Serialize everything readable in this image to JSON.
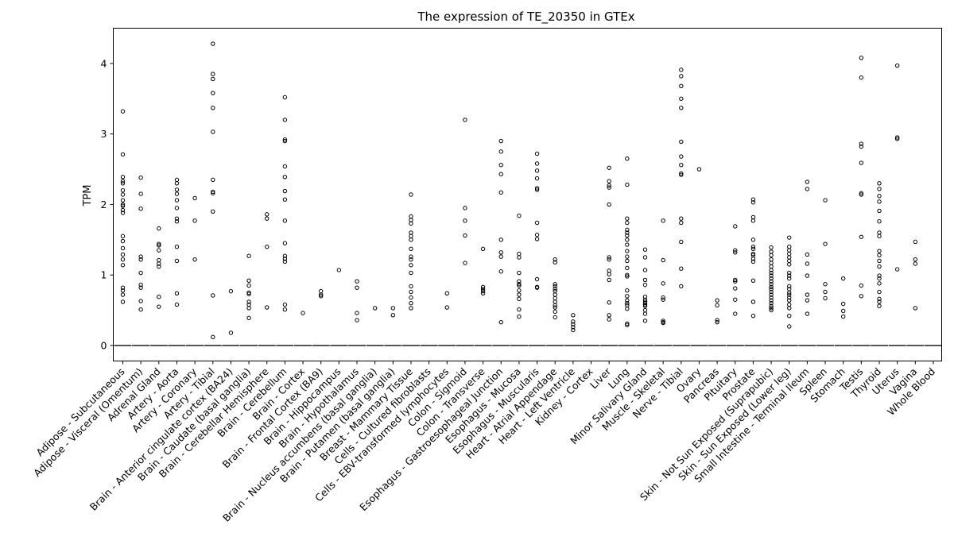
{
  "chart_data": {
    "type": "scatter",
    "title": "The expression of TE_20350 in GTEx",
    "ylabel": "TPM",
    "xlabel": "",
    "ylim": [
      -0.22,
      4.5
    ],
    "yticks": [
      0,
      1,
      2,
      3,
      4
    ],
    "grid": false,
    "legend": "none",
    "marker_color": "#000000",
    "median_color": "#555555",
    "categories": [
      "Adipose - Subcutaneous",
      "Adipose - Visceral (Omentum)",
      "Adrenal Gland",
      "Artery - Aorta",
      "Artery - Coronary",
      "Artery - Tibial",
      "Brain - Anterior cingulate cortex (BA24)",
      "Brain - Caudate (basal ganglia)",
      "Brain - Cerebellar Hemisphere",
      "Brain - Cerebellum",
      "Brain - Cortex",
      "Brain - Frontal Cortex (BA9)",
      "Brain - Hippocampus",
      "Brain - Hypothalamus",
      "Brain - Nucleus accumbens (basal ganglia)",
      "Brain - Putamen (basal ganglia)",
      "Breast - Mammary Tissue",
      "Cells - Cultured fibroblasts",
      "Cells - EBV-transformed lymphocytes",
      "Colon - Sigmoid",
      "Colon - Transverse",
      "Esophagus - Gastroesophageal Junction",
      "Esophagus - Mucosa",
      "Esophagus - Muscularis",
      "Heart - Atrial Appendage",
      "Heart - Left Ventricle",
      "Kidney - Cortex",
      "Liver",
      "Lung",
      "Minor Salivary Gland",
      "Muscle - Skeletal",
      "Nerve - Tibial",
      "Ovary",
      "Pancreas",
      "Pituitary",
      "Prostate",
      "Skin - Not Sun Exposed (Suprapubic)",
      "Skin - Sun Exposed (Lower leg)",
      "Small Intestine - Terminal Ileum",
      "Spleen",
      "Stomach",
      "Testis",
      "Thyroid",
      "Uterus",
      "Vagina",
      "Whole Blood"
    ],
    "medians": [
      0,
      0,
      0,
      0,
      0,
      0,
      0,
      0,
      0,
      0,
      0,
      0,
      0,
      0,
      0,
      0,
      0,
      0,
      0,
      0,
      0,
      0,
      0,
      0,
      0,
      0,
      0,
      0,
      0,
      0,
      0,
      0,
      0,
      0,
      0,
      0,
      0,
      0,
      0,
      0,
      0,
      0,
      0,
      0,
      0,
      0
    ],
    "outliers": [
      [
        3.32,
        2.71,
        2.39,
        2.33,
        2.3,
        2.2,
        2.14,
        2.06,
        2.0,
        1.98,
        1.92,
        1.88,
        1.55,
        1.48,
        1.38,
        1.29,
        1.22,
        1.14,
        0.82,
        0.78,
        0.72,
        0.62
      ],
      [
        2.38,
        2.15,
        1.94,
        1.26,
        1.22,
        1.03,
        0.86,
        0.82,
        0.63,
        0.51
      ],
      [
        1.66,
        1.44,
        1.42,
        1.35,
        1.21,
        1.16,
        1.12,
        0.69,
        0.55
      ],
      [
        2.35,
        2.3,
        2.21,
        2.15,
        2.06,
        1.95,
        1.8,
        1.76,
        1.4,
        1.2,
        0.74,
        0.58
      ],
      [
        2.09,
        1.77,
        1.22
      ],
      [
        4.28,
        3.85,
        3.78,
        3.58,
        3.37,
        3.03,
        2.35,
        2.18,
        2.16,
        1.9,
        0.71,
        0.12
      ],
      [
        0.77,
        0.18
      ],
      [
        1.27,
        0.92,
        0.85,
        0.75,
        0.73,
        0.62,
        0.58,
        0.53,
        0.39
      ],
      [
        1.86,
        1.8,
        1.4,
        0.54
      ],
      [
        3.52,
        3.2,
        2.92,
        2.9,
        2.54,
        2.39,
        2.19,
        2.07,
        1.77,
        1.45,
        1.27,
        1.23,
        1.19,
        0.58,
        0.51
      ],
      [
        0.46
      ],
      [
        0.77,
        0.72,
        0.7
      ],
      [
        1.07
      ],
      [
        0.91,
        0.82,
        0.46,
        0.36
      ],
      [
        0.53
      ],
      [
        0.53,
        0.43
      ],
      [
        2.14,
        1.83,
        1.78,
        1.73,
        1.6,
        1.55,
        1.5,
        1.37,
        1.26,
        1.22,
        1.14,
        1.03,
        0.84,
        0.76,
        0.68,
        0.6,
        0.53
      ],
      [],
      [
        0.74,
        0.54
      ],
      [
        3.2,
        1.95,
        1.77,
        1.56,
        1.17
      ],
      [
        1.37,
        0.83,
        0.8,
        0.77,
        0.74
      ],
      [
        2.9,
        2.75,
        2.56,
        2.43,
        2.17,
        1.5,
        1.32,
        1.26,
        1.05,
        0.33
      ],
      [
        1.84,
        1.3,
        1.25,
        1.03,
        0.91,
        0.87,
        0.85,
        0.78,
        0.72,
        0.66,
        0.51,
        0.41
      ],
      [
        2.72,
        2.58,
        2.48,
        2.37,
        2.23,
        2.21,
        1.74,
        1.57,
        1.51,
        0.94,
        0.83,
        0.82
      ],
      [
        1.22,
        1.18,
        0.87,
        0.84,
        0.8,
        0.77,
        0.72,
        0.67,
        0.62,
        0.57,
        0.54,
        0.48,
        0.4
      ],
      [
        0.43,
        0.34,
        0.3,
        0.26,
        0.22
      ],
      [],
      [
        2.52,
        2.33,
        2.27,
        2.24,
        2.0,
        1.25,
        1.22,
        1.06,
        1.01,
        0.93,
        0.61,
        0.43,
        0.37
      ],
      [
        2.65,
        2.28,
        1.8,
        1.74,
        1.64,
        1.6,
        1.56,
        1.5,
        1.43,
        1.34,
        1.26,
        1.2,
        1.1,
        1.0,
        0.98,
        0.78,
        0.7,
        0.64,
        0.6,
        0.57,
        0.52,
        0.31,
        0.29
      ],
      [
        1.36,
        1.25,
        1.07,
        0.93,
        0.86,
        0.69,
        0.65,
        0.62,
        0.6,
        0.58,
        0.56,
        0.5,
        0.45,
        0.35
      ],
      [
        1.77,
        1.21,
        0.88,
        0.68,
        0.65,
        0.35,
        0.33,
        0.32
      ],
      [
        3.91,
        3.82,
        3.68,
        3.5,
        3.37,
        2.89,
        2.68,
        2.56,
        2.44,
        2.42,
        1.8,
        1.74,
        1.47,
        1.09,
        0.84
      ],
      [
        2.5
      ],
      [
        0.64,
        0.57,
        0.36,
        0.33
      ],
      [
        1.69,
        1.35,
        1.32,
        0.93,
        0.91,
        0.81,
        0.65,
        0.45
      ],
      [
        2.07,
        2.03,
        1.82,
        1.77,
        1.5,
        1.4,
        1.37,
        1.3,
        1.28,
        1.23,
        1.19,
        0.92,
        0.62,
        0.42
      ],
      [
        1.39,
        1.33,
        1.28,
        1.22,
        1.17,
        1.12,
        1.07,
        1.03,
        0.99,
        0.95,
        0.91,
        0.87,
        0.83,
        0.8,
        0.76,
        0.72,
        0.68,
        0.64,
        0.6,
        0.56,
        0.53,
        0.5
      ],
      [
        1.53,
        1.4,
        1.35,
        1.3,
        1.25,
        1.2,
        1.15,
        1.03,
        0.99,
        0.95,
        0.84,
        0.8,
        0.75,
        0.72,
        0.68,
        0.64,
        0.58,
        0.53,
        0.42,
        0.27
      ],
      [
        2.32,
        2.22,
        1.29,
        1.16,
        0.99,
        0.72,
        0.64,
        0.45
      ],
      [
        2.06,
        1.44,
        0.87,
        0.76,
        0.67
      ],
      [
        0.95,
        0.59,
        0.49,
        0.41
      ],
      [
        4.08,
        3.8,
        2.86,
        2.82,
        2.59,
        2.16,
        2.14,
        1.54,
        0.85,
        0.7
      ],
      [
        2.3,
        2.22,
        2.12,
        2.04,
        1.91,
        1.76,
        1.6,
        1.55,
        1.34,
        1.28,
        1.2,
        1.12,
        0.99,
        0.95,
        0.88,
        0.76,
        0.66,
        0.62,
        0.56
      ],
      [
        3.97,
        2.95,
        2.93,
        1.08
      ],
      [
        1.47,
        1.22,
        1.16,
        0.53
      ],
      []
    ]
  }
}
